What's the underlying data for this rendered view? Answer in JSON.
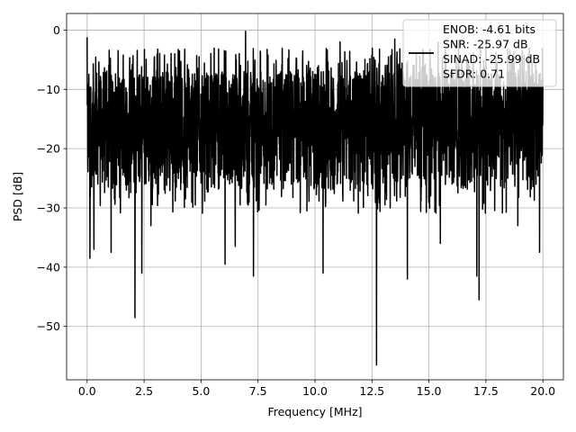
{
  "chart_data": {
    "type": "line",
    "title": "",
    "xlabel": "Frequency [MHz]",
    "ylabel": "PSD [dB]",
    "xlim": [
      -0.9,
      20.9
    ],
    "ylim": [
      -59,
      2.8
    ],
    "xticks": [
      0.0,
      2.5,
      5.0,
      7.5,
      10.0,
      12.5,
      15.0,
      17.5,
      20.0
    ],
    "xtick_labels": [
      "0.0",
      "2.5",
      "5.0",
      "7.5",
      "10.0",
      "12.5",
      "15.0",
      "17.5",
      "20.0"
    ],
    "yticks": [
      0,
      -10,
      -20,
      -30,
      -40,
      -50
    ],
    "ytick_labels": [
      "0",
      "−10",
      "−20",
      "−30",
      "−40",
      "−50"
    ],
    "grid": true,
    "legend": {
      "placement": "top-right",
      "entries": [
        "ENOB: -4.61 bits",
        "SNR: -25.97 dB",
        "SINAD: -25.99 dB",
        "SFDR: 0.71"
      ]
    },
    "series": [
      {
        "color": "#000000",
        "x_range": [
          0.0,
          20.0
        ],
        "noise_band_db": [
          -27,
          -7
        ],
        "peaks": [
          {
            "x": 0.0,
            "y": -1.2
          },
          {
            "x": 6.05,
            "y": -3.0
          },
          {
            "x": 6.95,
            "y": -0.2
          },
          {
            "x": 11.1,
            "y": -2.0
          },
          {
            "x": 13.5,
            "y": -1.5
          },
          {
            "x": 15.4,
            "y": -2.0
          },
          {
            "x": 16.3,
            "y": -1.8
          },
          {
            "x": 17.5,
            "y": -2.2
          },
          {
            "x": 19.4,
            "y": -3.2
          }
        ],
        "dips": [
          {
            "x": 0.12,
            "y": -38.5
          },
          {
            "x": 0.3,
            "y": -37.0
          },
          {
            "x": 1.05,
            "y": -37.5
          },
          {
            "x": 2.1,
            "y": -48.5
          },
          {
            "x": 2.4,
            "y": -41.0
          },
          {
            "x": 2.8,
            "y": -33.0
          },
          {
            "x": 6.05,
            "y": -39.5
          },
          {
            "x": 6.5,
            "y": -36.5
          },
          {
            "x": 7.3,
            "y": -41.5
          },
          {
            "x": 7.85,
            "y": -29.5
          },
          {
            "x": 10.35,
            "y": -41.0
          },
          {
            "x": 12.7,
            "y": -56.5
          },
          {
            "x": 13.3,
            "y": -30.0
          },
          {
            "x": 14.05,
            "y": -42.0
          },
          {
            "x": 15.5,
            "y": -36.0
          },
          {
            "x": 17.1,
            "y": -41.5
          },
          {
            "x": 17.2,
            "y": -45.5
          },
          {
            "x": 18.9,
            "y": -33.0
          },
          {
            "x": 19.85,
            "y": -37.5
          }
        ]
      }
    ]
  }
}
